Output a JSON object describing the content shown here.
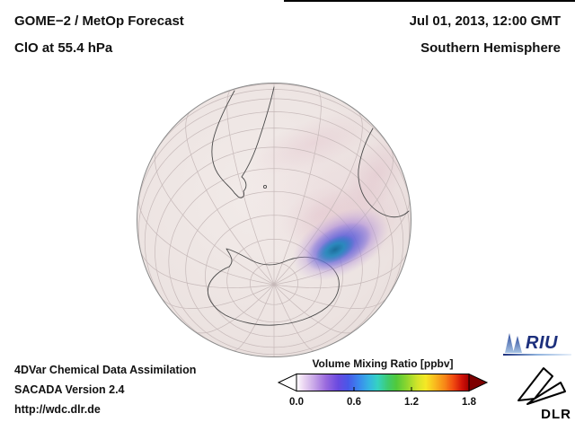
{
  "header": {
    "title_line1": "GOME−2 / MetOp Forecast",
    "title_line2": "ClO at 55.4 hPa",
    "datetime": "Jul 01, 2013, 12:00 GMT",
    "hemisphere": "Southern Hemisphere"
  },
  "footer": {
    "line1": "4DVar Chemical Data Assimilation",
    "line2": "SACADA Version 2.4",
    "url": "http://wdc.dlr.de"
  },
  "colorbar": {
    "title": "Volume Mixing Ratio [ppbv]",
    "ticks": [
      "0.0",
      "0.6",
      "1.2",
      "1.8"
    ],
    "range_min": 0.0,
    "range_max": 1.8,
    "under_range_arrow_color": "#ffffff",
    "over_range_arrow_color": "#7e0000",
    "gradient_stops": [
      "#fdfdff",
      "#c9a8e8",
      "#9a6ade",
      "#4858e8",
      "#3a86ee",
      "#35d2c2",
      "#3ecb6e",
      "#8ed62e",
      "#f6e825",
      "#f9bc1e",
      "#f78617",
      "#f04a10",
      "#a40000"
    ]
  },
  "map": {
    "projection": "orthographic globe, Southern Hemisphere",
    "visible_landmasses": [
      "South America",
      "Africa",
      "Antarctica"
    ],
    "anomaly": {
      "description": "enhanced ClO patch near East Antarctica",
      "core_color": "#2590b8",
      "mid_color": "#3b57d9",
      "outer_color": "#8f6fd9"
    },
    "base_color": "#ece3e1",
    "graticule_color": "#c6b9b9",
    "coastline_color": "#4a4a4a"
  },
  "logos": {
    "riu_label": "RIU",
    "dlr_label": "DLR"
  }
}
